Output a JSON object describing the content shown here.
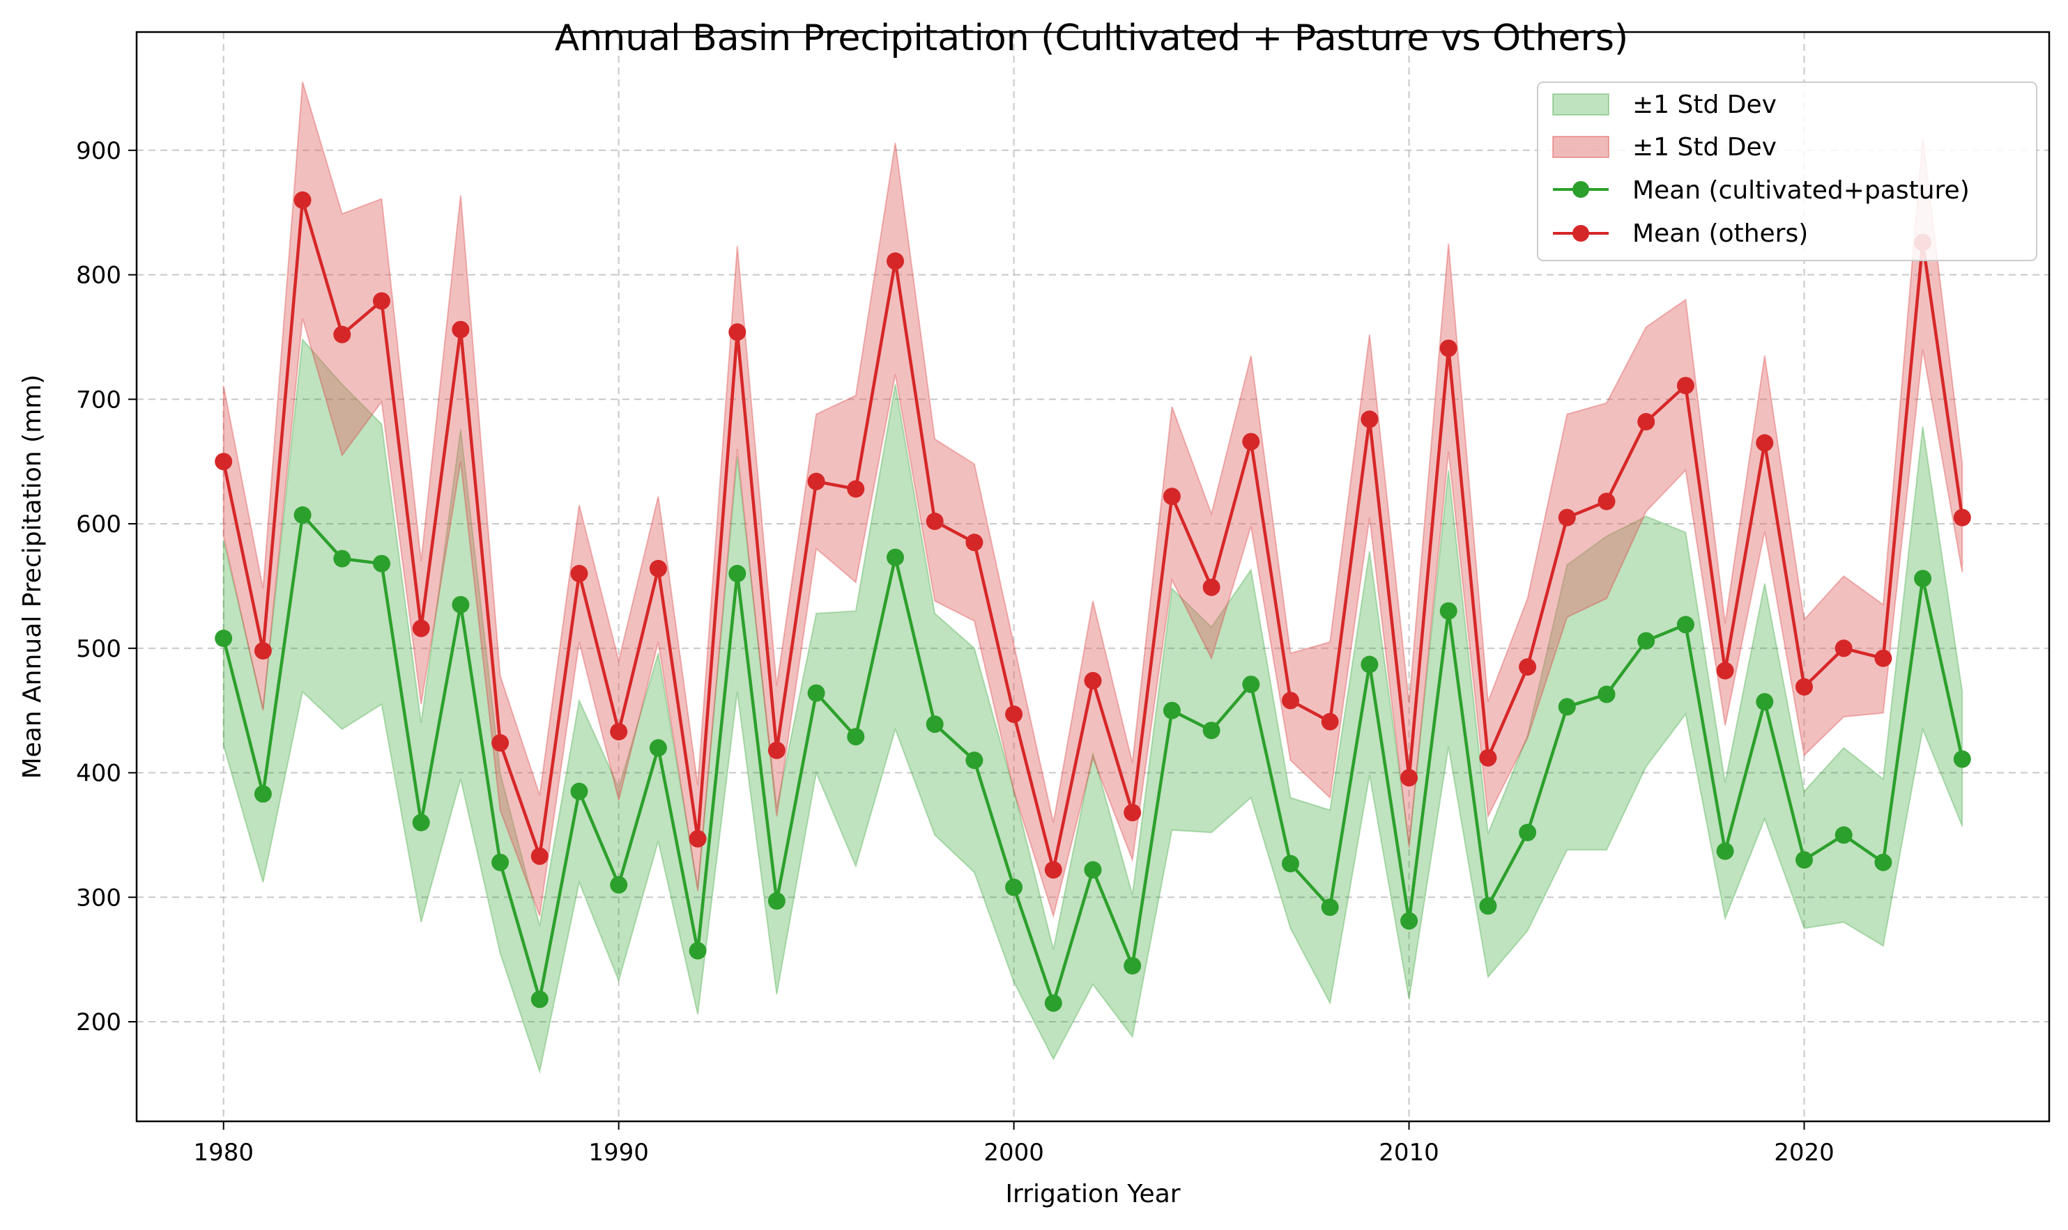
{
  "chart_data": {
    "type": "line",
    "title": "Annual Basin Precipitation (Cultivated + Pasture vs Others)",
    "xlabel": "Irrigation Year",
    "ylabel": "Mean Annual Precipitation (mm)",
    "xlim": [
      1977.8,
      2026.2
    ],
    "ylim": [
      120,
      995
    ],
    "x_ticks": [
      1980,
      1990,
      2000,
      2010,
      2020
    ],
    "y_ticks": [
      200,
      300,
      400,
      500,
      600,
      700,
      800,
      900
    ],
    "grid": true,
    "legend_position": "top-right",
    "x": [
      1980,
      1981,
      1982,
      1983,
      1984,
      1985,
      1986,
      1987,
      1988,
      1989,
      1990,
      1991,
      1992,
      1993,
      1994,
      1995,
      1996,
      1997,
      1998,
      1999,
      2000,
      2001,
      2002,
      2003,
      2004,
      2005,
      2006,
      2007,
      2008,
      2009,
      2010,
      2011,
      2012,
      2013,
      2014,
      2015,
      2016,
      2017,
      2018,
      2019,
      2020,
      2021,
      2022,
      2023,
      2024
    ],
    "series": [
      {
        "name": "Mean (cultivated+pasture)",
        "band_name": "±1 Std Dev",
        "color": "#2ca02c",
        "band_color": "#2ca02c",
        "values": [
          508,
          383,
          607,
          572,
          568,
          360,
          535,
          328,
          218,
          385,
          310,
          420,
          257,
          560,
          297,
          464,
          429,
          573,
          439,
          410,
          308,
          215,
          322,
          245,
          450,
          434,
          471,
          327,
          292,
          487,
          281,
          530,
          293,
          352,
          453,
          463,
          506,
          519,
          337,
          457,
          330,
          350,
          328,
          556,
          411
        ],
        "lower": [
          422,
          312,
          465,
          435,
          455,
          280,
          395,
          255,
          160,
          312,
          233,
          345,
          206,
          465,
          222,
          400,
          325,
          435,
          350,
          320,
          232,
          170,
          230,
          188,
          354,
          352,
          380,
          275,
          215,
          398,
          218,
          421,
          236,
          273,
          338,
          338,
          405,
          447,
          283,
          363,
          275,
          280,
          261,
          435,
          357
        ],
        "upper": [
          587,
          452,
          748,
          712,
          680,
          440,
          676,
          400,
          277,
          458,
          388,
          496,
          308,
          654,
          372,
          528,
          530,
          712,
          528,
          500,
          386,
          258,
          416,
          302,
          548,
          517,
          563,
          380,
          370,
          578,
          344,
          643,
          351,
          430,
          567,
          590,
          606,
          593,
          392,
          552,
          385,
          420,
          395,
          678,
          465
        ]
      },
      {
        "name": "Mean (others)",
        "band_name": "±1 Std Dev",
        "color": "#d62728",
        "band_color": "#e06666",
        "values": [
          650,
          498,
          860,
          752,
          779,
          516,
          756,
          424,
          333,
          560,
          433,
          564,
          347,
          754,
          418,
          634,
          628,
          811,
          602,
          585,
          447,
          322,
          474,
          368,
          622,
          549,
          666,
          458,
          441,
          684,
          396,
          741,
          412,
          485,
          605,
          618,
          682,
          711,
          482,
          665,
          469,
          500,
          492,
          826,
          605
        ],
        "lower": [
          590,
          450,
          765,
          655,
          698,
          455,
          650,
          370,
          285,
          505,
          378,
          505,
          305,
          660,
          365,
          580,
          553,
          720,
          538,
          522,
          385,
          285,
          412,
          330,
          555,
          492,
          598,
          410,
          380,
          605,
          340,
          658,
          365,
          428,
          525,
          540,
          610,
          643,
          438,
          594,
          414,
          445,
          448,
          740,
          561
        ],
        "upper": [
          711,
          548,
          955,
          849,
          861,
          570,
          864,
          478,
          382,
          615,
          490,
          622,
          390,
          823,
          470,
          688,
          703,
          906,
          668,
          648,
          503,
          360,
          538,
          408,
          694,
          608,
          735,
          496,
          505,
          752,
          456,
          825,
          457,
          540,
          688,
          697,
          758,
          780,
          520,
          735,
          523,
          558,
          535,
          910,
          648
        ]
      }
    ]
  }
}
